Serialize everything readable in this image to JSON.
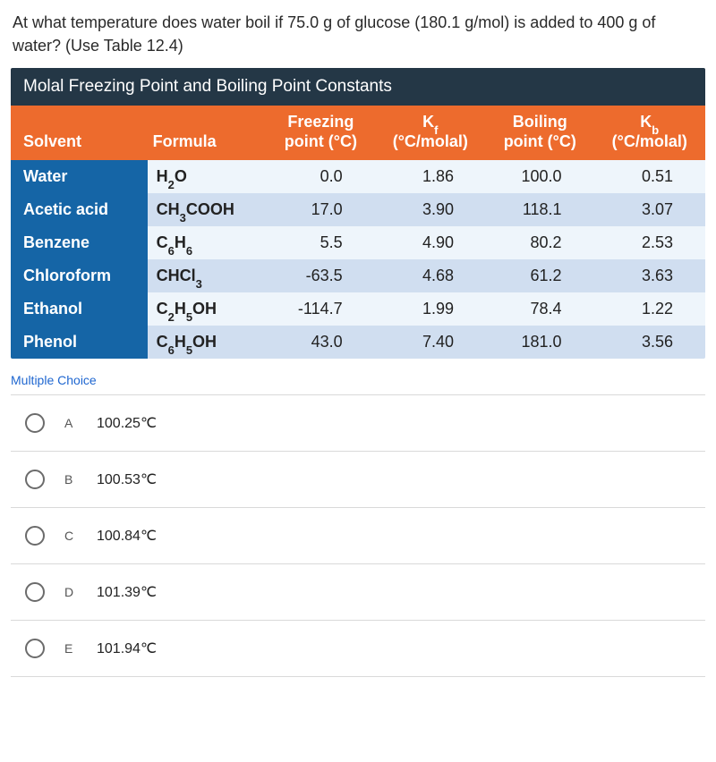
{
  "question": "At what temperature does water boil if 75.0 g of glucose (180.1 g/mol) is added to 400 g of water? (Use Table 12.4)",
  "table": {
    "title": "Molal Freezing Point and Boiling Point Constants",
    "title_bg": "#243746",
    "header_bg": "#ed6b2d",
    "solvent_col_bg": "#1565a6",
    "row_light_bg": "#eef5fb",
    "row_dark_bg": "#d0def0",
    "columns": {
      "solvent": "Solvent",
      "formula": "Formula",
      "fp": "Freezing point (°C)",
      "kf": "K_f (°C/molal)",
      "bp": "Boiling point (°C)",
      "kb": "K_b (°C/molal)"
    },
    "rows": [
      {
        "solvent": "Water",
        "formula_html": "H<sub>2</sub>O",
        "fp": "0.0",
        "kf": "1.86",
        "bp": "100.0",
        "kb": "0.51"
      },
      {
        "solvent": "Acetic acid",
        "formula_html": "CH<sub>3</sub>COOH",
        "fp": "17.0",
        "kf": "3.90",
        "bp": "118.1",
        "kb": "3.07"
      },
      {
        "solvent": "Benzene",
        "formula_html": "C<sub>6</sub>H<sub>6</sub>",
        "fp": "5.5",
        "kf": "4.90",
        "bp": "80.2",
        "kb": "2.53"
      },
      {
        "solvent": "Chloroform",
        "formula_html": "CHCl<sub>3</sub>",
        "fp": "-63.5",
        "kf": "4.68",
        "bp": "61.2",
        "kb": "3.63"
      },
      {
        "solvent": "Ethanol",
        "formula_html": "C<sub>2</sub>H<sub>5</sub>OH",
        "fp": "-114.7",
        "kf": "1.99",
        "bp": "78.4",
        "kb": "1.22"
      },
      {
        "solvent": "Phenol",
        "formula_html": "C<sub>6</sub>H<sub>5</sub>OH",
        "fp": "43.0",
        "kf": "7.40",
        "bp": "181.0",
        "kb": "3.56"
      }
    ]
  },
  "mc_label": "Multiple Choice",
  "choices": [
    {
      "letter": "A",
      "text": "100.25°C"
    },
    {
      "letter": "B",
      "text": "100.53°C"
    },
    {
      "letter": "C",
      "text": "100.84°C"
    },
    {
      "letter": "D",
      "text": "101.39°C"
    },
    {
      "letter": "E",
      "text": "101.94°C"
    }
  ]
}
